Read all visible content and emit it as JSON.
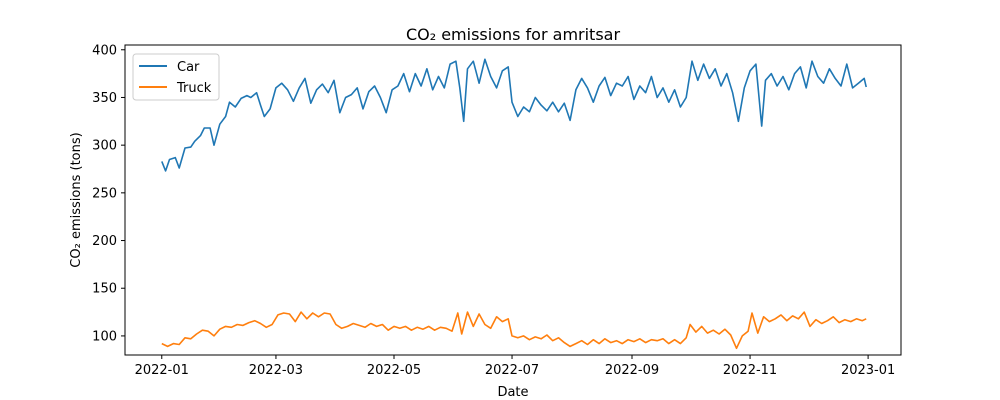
{
  "chart_data": {
    "type": "line",
    "title": "CO₂ emissions for amritsar",
    "xlabel": "Date",
    "ylabel": "CO₂ emissions (tons)",
    "x_start": "2022-01-01",
    "x_end": "2022-12-31",
    "xlim": [
      "2021-12-13",
      "2023-01-18"
    ],
    "ylim": [
      80,
      405
    ],
    "x_ticks": [
      {
        "date": "2022-01-01",
        "label": "2022-01"
      },
      {
        "date": "2022-03-01",
        "label": "2022-03"
      },
      {
        "date": "2022-05-01",
        "label": "2022-05"
      },
      {
        "date": "2022-07-01",
        "label": "2022-07"
      },
      {
        "date": "2022-09-01",
        "label": "2022-09"
      },
      {
        "date": "2022-11-01",
        "label": "2022-11"
      },
      {
        "date": "2023-01-01",
        "label": "2023-01"
      }
    ],
    "y_ticks": [
      100,
      150,
      200,
      250,
      300,
      350,
      400
    ],
    "grid": false,
    "legend": "top-left",
    "series": [
      {
        "name": "Car",
        "color": "#1f77b4",
        "points": [
          [
            "2022-01-01",
            283
          ],
          [
            "2022-01-03",
            273
          ],
          [
            "2022-01-05",
            285
          ],
          [
            "2022-01-08",
            287
          ],
          [
            "2022-01-10",
            276
          ],
          [
            "2022-01-13",
            297
          ],
          [
            "2022-01-16",
            298
          ],
          [
            "2022-01-18",
            304
          ],
          [
            "2022-01-21",
            310
          ],
          [
            "2022-01-23",
            318
          ],
          [
            "2022-01-26",
            318
          ],
          [
            "2022-01-28",
            300
          ],
          [
            "2022-01-31",
            322
          ],
          [
            "2022-02-03",
            330
          ],
          [
            "2022-02-05",
            345
          ],
          [
            "2022-02-08",
            340
          ],
          [
            "2022-02-11",
            349
          ],
          [
            "2022-02-14",
            352
          ],
          [
            "2022-02-16",
            350
          ],
          [
            "2022-02-19",
            355
          ],
          [
            "2022-02-21",
            342
          ],
          [
            "2022-02-23",
            330
          ],
          [
            "2022-02-26",
            338
          ],
          [
            "2022-03-01",
            360
          ],
          [
            "2022-03-04",
            365
          ],
          [
            "2022-03-07",
            358
          ],
          [
            "2022-03-10",
            346
          ],
          [
            "2022-03-13",
            360
          ],
          [
            "2022-03-16",
            370
          ],
          [
            "2022-03-19",
            344
          ],
          [
            "2022-03-22",
            358
          ],
          [
            "2022-03-25",
            364
          ],
          [
            "2022-03-28",
            355
          ],
          [
            "2022-03-31",
            368
          ],
          [
            "2022-04-03",
            334
          ],
          [
            "2022-04-06",
            350
          ],
          [
            "2022-04-09",
            353
          ],
          [
            "2022-04-12",
            360
          ],
          [
            "2022-04-15",
            338
          ],
          [
            "2022-04-18",
            356
          ],
          [
            "2022-04-21",
            362
          ],
          [
            "2022-04-24",
            350
          ],
          [
            "2022-04-27",
            334
          ],
          [
            "2022-04-30",
            358
          ],
          [
            "2022-05-03",
            362
          ],
          [
            "2022-05-06",
            375
          ],
          [
            "2022-05-09",
            356
          ],
          [
            "2022-05-12",
            375
          ],
          [
            "2022-05-15",
            362
          ],
          [
            "2022-05-18",
            380
          ],
          [
            "2022-05-21",
            358
          ],
          [
            "2022-05-24",
            372
          ],
          [
            "2022-05-27",
            360
          ],
          [
            "2022-05-30",
            385
          ],
          [
            "2022-06-02",
            388
          ],
          [
            "2022-06-04",
            360
          ],
          [
            "2022-06-06",
            325
          ],
          [
            "2022-06-08",
            380
          ],
          [
            "2022-06-11",
            388
          ],
          [
            "2022-06-14",
            365
          ],
          [
            "2022-06-17",
            390
          ],
          [
            "2022-06-20",
            372
          ],
          [
            "2022-06-23",
            360
          ],
          [
            "2022-06-26",
            378
          ],
          [
            "2022-06-29",
            382
          ],
          [
            "2022-07-01",
            345
          ],
          [
            "2022-07-04",
            330
          ],
          [
            "2022-07-07",
            340
          ],
          [
            "2022-07-10",
            335
          ],
          [
            "2022-07-13",
            350
          ],
          [
            "2022-07-16",
            342
          ],
          [
            "2022-07-19",
            336
          ],
          [
            "2022-07-22",
            345
          ],
          [
            "2022-07-25",
            335
          ],
          [
            "2022-07-28",
            344
          ],
          [
            "2022-07-31",
            326
          ],
          [
            "2022-08-03",
            358
          ],
          [
            "2022-08-06",
            370
          ],
          [
            "2022-08-09",
            360
          ],
          [
            "2022-08-12",
            345
          ],
          [
            "2022-08-15",
            362
          ],
          [
            "2022-08-18",
            371
          ],
          [
            "2022-08-21",
            352
          ],
          [
            "2022-08-24",
            365
          ],
          [
            "2022-08-27",
            362
          ],
          [
            "2022-08-30",
            372
          ],
          [
            "2022-09-02",
            348
          ],
          [
            "2022-09-05",
            362
          ],
          [
            "2022-09-08",
            355
          ],
          [
            "2022-09-11",
            372
          ],
          [
            "2022-09-14",
            350
          ],
          [
            "2022-09-17",
            360
          ],
          [
            "2022-09-20",
            345
          ],
          [
            "2022-09-23",
            358
          ],
          [
            "2022-09-26",
            340
          ],
          [
            "2022-09-29",
            350
          ],
          [
            "2022-10-02",
            388
          ],
          [
            "2022-10-05",
            368
          ],
          [
            "2022-10-08",
            385
          ],
          [
            "2022-10-11",
            370
          ],
          [
            "2022-10-14",
            380
          ],
          [
            "2022-10-17",
            362
          ],
          [
            "2022-10-20",
            375
          ],
          [
            "2022-10-23",
            355
          ],
          [
            "2022-10-26",
            325
          ],
          [
            "2022-10-29",
            360
          ],
          [
            "2022-11-01",
            378
          ],
          [
            "2022-11-04",
            385
          ],
          [
            "2022-11-07",
            320
          ],
          [
            "2022-11-09",
            368
          ],
          [
            "2022-11-12",
            375
          ],
          [
            "2022-11-15",
            362
          ],
          [
            "2022-11-18",
            372
          ],
          [
            "2022-11-21",
            358
          ],
          [
            "2022-11-24",
            375
          ],
          [
            "2022-11-27",
            382
          ],
          [
            "2022-11-30",
            360
          ],
          [
            "2022-12-03",
            388
          ],
          [
            "2022-12-06",
            372
          ],
          [
            "2022-12-09",
            365
          ],
          [
            "2022-12-12",
            380
          ],
          [
            "2022-12-15",
            370
          ],
          [
            "2022-12-18",
            362
          ],
          [
            "2022-12-21",
            385
          ],
          [
            "2022-12-24",
            360
          ],
          [
            "2022-12-27",
            365
          ],
          [
            "2022-12-30",
            370
          ],
          [
            "2022-12-31",
            361
          ]
        ]
      },
      {
        "name": "Truck",
        "color": "#ff7f0e",
        "points": [
          [
            "2022-01-01",
            92
          ],
          [
            "2022-01-04",
            89
          ],
          [
            "2022-01-07",
            92
          ],
          [
            "2022-01-10",
            91
          ],
          [
            "2022-01-13",
            98
          ],
          [
            "2022-01-16",
            97
          ],
          [
            "2022-01-19",
            102
          ],
          [
            "2022-01-22",
            106
          ],
          [
            "2022-01-25",
            105
          ],
          [
            "2022-01-28",
            100
          ],
          [
            "2022-01-31",
            107
          ],
          [
            "2022-02-03",
            110
          ],
          [
            "2022-02-06",
            109
          ],
          [
            "2022-02-09",
            112
          ],
          [
            "2022-02-12",
            111
          ],
          [
            "2022-02-15",
            114
          ],
          [
            "2022-02-18",
            116
          ],
          [
            "2022-02-21",
            113
          ],
          [
            "2022-02-24",
            109
          ],
          [
            "2022-02-27",
            112
          ],
          [
            "2022-03-02",
            122
          ],
          [
            "2022-03-05",
            124
          ],
          [
            "2022-03-08",
            123
          ],
          [
            "2022-03-11",
            115
          ],
          [
            "2022-03-14",
            125
          ],
          [
            "2022-03-17",
            118
          ],
          [
            "2022-03-20",
            124
          ],
          [
            "2022-03-23",
            120
          ],
          [
            "2022-03-26",
            124
          ],
          [
            "2022-03-29",
            123
          ],
          [
            "2022-04-01",
            112
          ],
          [
            "2022-04-04",
            108
          ],
          [
            "2022-04-07",
            110
          ],
          [
            "2022-04-10",
            113
          ],
          [
            "2022-04-13",
            111
          ],
          [
            "2022-04-16",
            109
          ],
          [
            "2022-04-19",
            113
          ],
          [
            "2022-04-22",
            110
          ],
          [
            "2022-04-25",
            112
          ],
          [
            "2022-04-28",
            106
          ],
          [
            "2022-05-01",
            110
          ],
          [
            "2022-05-04",
            108
          ],
          [
            "2022-05-07",
            110
          ],
          [
            "2022-05-10",
            106
          ],
          [
            "2022-05-13",
            109
          ],
          [
            "2022-05-16",
            107
          ],
          [
            "2022-05-19",
            110
          ],
          [
            "2022-05-22",
            106
          ],
          [
            "2022-05-25",
            109
          ],
          [
            "2022-05-28",
            108
          ],
          [
            "2022-05-31",
            105
          ],
          [
            "2022-06-03",
            124
          ],
          [
            "2022-06-05",
            102
          ],
          [
            "2022-06-08",
            125
          ],
          [
            "2022-06-11",
            110
          ],
          [
            "2022-06-14",
            123
          ],
          [
            "2022-06-17",
            112
          ],
          [
            "2022-06-20",
            108
          ],
          [
            "2022-06-23",
            120
          ],
          [
            "2022-06-26",
            115
          ],
          [
            "2022-06-29",
            118
          ],
          [
            "2022-07-01",
            100
          ],
          [
            "2022-07-04",
            98
          ],
          [
            "2022-07-07",
            100
          ],
          [
            "2022-07-10",
            96
          ],
          [
            "2022-07-13",
            99
          ],
          [
            "2022-07-16",
            97
          ],
          [
            "2022-07-19",
            101
          ],
          [
            "2022-07-22",
            95
          ],
          [
            "2022-07-25",
            98
          ],
          [
            "2022-07-28",
            93
          ],
          [
            "2022-07-31",
            89
          ],
          [
            "2022-08-03",
            92
          ],
          [
            "2022-08-06",
            95
          ],
          [
            "2022-08-09",
            91
          ],
          [
            "2022-08-12",
            96
          ],
          [
            "2022-08-15",
            92
          ],
          [
            "2022-08-18",
            97
          ],
          [
            "2022-08-21",
            93
          ],
          [
            "2022-08-24",
            95
          ],
          [
            "2022-08-27",
            92
          ],
          [
            "2022-08-30",
            96
          ],
          [
            "2022-09-02",
            94
          ],
          [
            "2022-09-05",
            97
          ],
          [
            "2022-09-08",
            93
          ],
          [
            "2022-09-11",
            96
          ],
          [
            "2022-09-14",
            95
          ],
          [
            "2022-09-17",
            97
          ],
          [
            "2022-09-20",
            92
          ],
          [
            "2022-09-23",
            96
          ],
          [
            "2022-09-26",
            92
          ],
          [
            "2022-09-29",
            98
          ],
          [
            "2022-10-01",
            112
          ],
          [
            "2022-10-04",
            104
          ],
          [
            "2022-10-07",
            110
          ],
          [
            "2022-10-10",
            103
          ],
          [
            "2022-10-13",
            106
          ],
          [
            "2022-10-16",
            102
          ],
          [
            "2022-10-19",
            107
          ],
          [
            "2022-10-22",
            101
          ],
          [
            "2022-10-25",
            87
          ],
          [
            "2022-10-28",
            100
          ],
          [
            "2022-10-31",
            105
          ],
          [
            "2022-11-02",
            124
          ],
          [
            "2022-11-05",
            103
          ],
          [
            "2022-11-08",
            120
          ],
          [
            "2022-11-11",
            115
          ],
          [
            "2022-11-14",
            118
          ],
          [
            "2022-11-17",
            122
          ],
          [
            "2022-11-20",
            116
          ],
          [
            "2022-11-23",
            121
          ],
          [
            "2022-11-26",
            118
          ],
          [
            "2022-11-29",
            125
          ],
          [
            "2022-12-02",
            110
          ],
          [
            "2022-12-05",
            117
          ],
          [
            "2022-12-08",
            113
          ],
          [
            "2022-12-11",
            116
          ],
          [
            "2022-12-14",
            120
          ],
          [
            "2022-12-17",
            114
          ],
          [
            "2022-12-20",
            117
          ],
          [
            "2022-12-23",
            115
          ],
          [
            "2022-12-26",
            118
          ],
          [
            "2022-12-29",
            116
          ],
          [
            "2022-12-31",
            118
          ]
        ]
      }
    ]
  }
}
